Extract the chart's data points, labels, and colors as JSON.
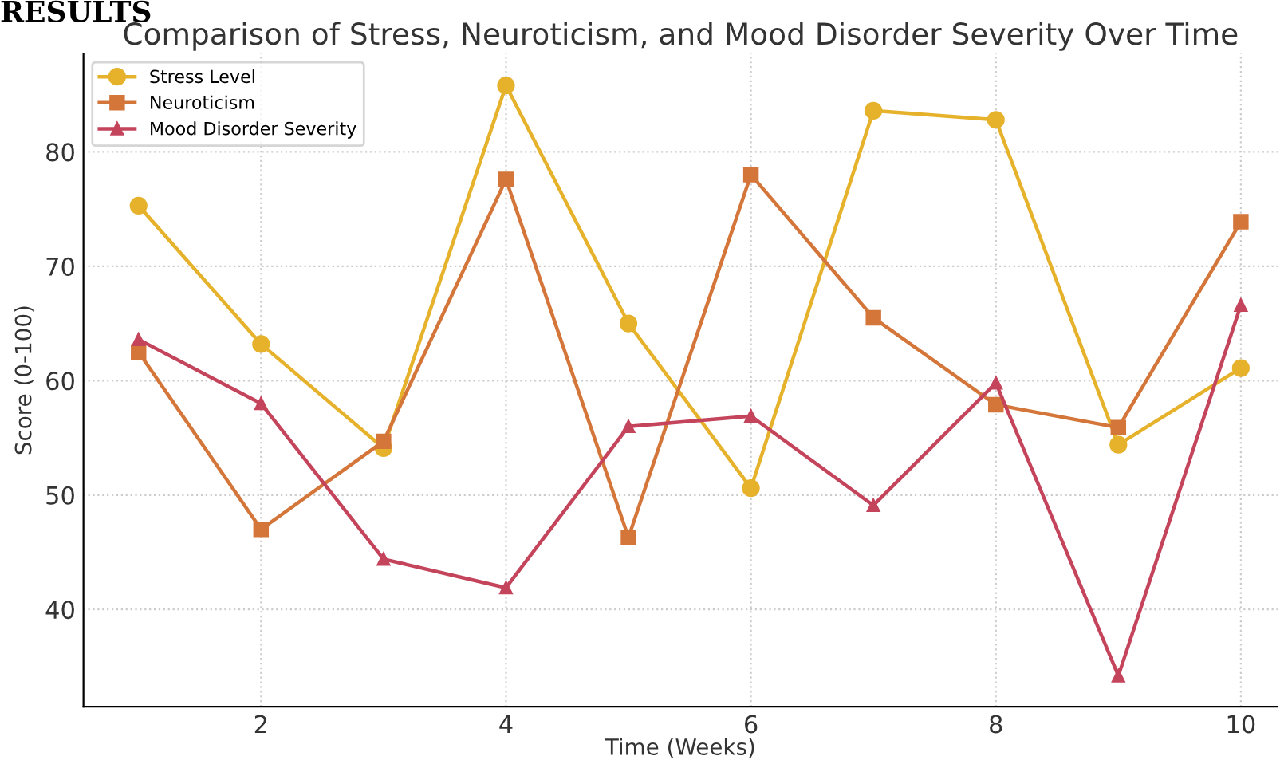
{
  "chart_data": {
    "type": "line",
    "title": "Comparison of Stress, Neuroticism, and Mood Disorder Severity Over Time",
    "xlabel": "Time (Weeks)",
    "ylabel": "Score (0-100)",
    "annotations": [
      "RESULTS"
    ],
    "x": [
      1,
      2,
      3,
      4,
      5,
      6,
      7,
      8,
      9,
      10
    ],
    "series": [
      {
        "name": "Stress Level",
        "color": "#e6b22c",
        "marker": "circle",
        "values": [
          75.3,
          63.2,
          54.1,
          85.8,
          65.0,
          50.6,
          83.6,
          82.8,
          54.4,
          61.1
        ]
      },
      {
        "name": "Neuroticism",
        "color": "#d4763a",
        "marker": "square",
        "values": [
          62.5,
          47.0,
          54.7,
          77.6,
          46.3,
          78.0,
          65.5,
          57.9,
          55.9,
          73.9
        ]
      },
      {
        "name": "Mood Disorder Severity",
        "color": "#c4445c",
        "marker": "triangle",
        "values": [
          63.6,
          58.0,
          44.4,
          41.9,
          56.0,
          56.9,
          49.1,
          59.8,
          34.2,
          66.6
        ]
      }
    ],
    "xlim": [
      0.55,
      10.3
    ],
    "ylim": [
      31.5,
      88.6
    ],
    "xticks": [
      2,
      4,
      6,
      8,
      10
    ],
    "yticks": [
      40,
      50,
      60,
      70,
      80
    ],
    "grid": true,
    "legend": "top left",
    "line_style": "solid"
  }
}
